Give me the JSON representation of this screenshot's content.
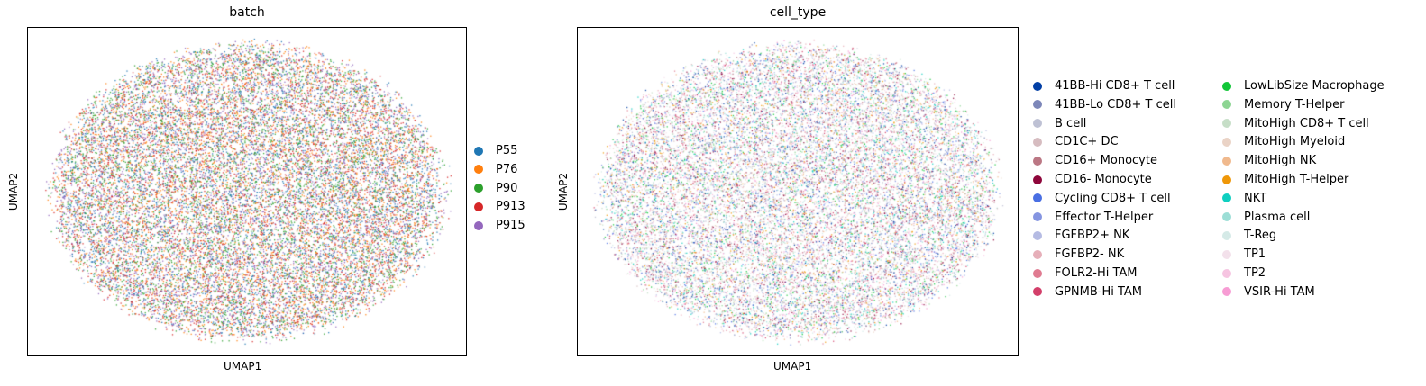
{
  "chart_data": [
    {
      "type": "scatter",
      "title": "batch",
      "xlabel": "UMAP1",
      "ylabel": "UMAP2",
      "grid": false,
      "ticks": false,
      "legend_placement": "right",
      "categories": [
        "P55",
        "P76",
        "P90",
        "P913",
        "P915"
      ],
      "colors": [
        "#1f77b4",
        "#ff7f0e",
        "#2ca02c",
        "#d62728",
        "#9467bd"
      ],
      "point_cloud": {
        "shape": "ellipse",
        "approx_points": 20000
      }
    },
    {
      "type": "scatter",
      "title": "cell_type",
      "xlabel": "UMAP1",
      "ylabel": "UMAP2",
      "grid": false,
      "ticks": false,
      "legend_placement": "right",
      "categories": [
        "41BB-Hi CD8+ T cell",
        "41BB-Lo CD8+ T cell",
        "B cell",
        "CD1C+ DC",
        "CD16+ Monocyte",
        "CD16- Monocyte",
        "Cycling CD8+ T cell",
        "Effector T-Helper",
        "FGFBP2+ NK",
        "FGFBP2- NK",
        "FOLR2-Hi TAM",
        "GPNMB-Hi TAM",
        "LowLibSize Macrophage",
        "Memory T-Helper",
        "MitoHigh CD8+ T cell",
        "MitoHigh Myeloid",
        "MitoHigh NK",
        "MitoHigh T-Helper",
        "NKT",
        "Plasma cell",
        "T-Reg",
        "TP1",
        "TP2",
        "VSIR-Hi TAM"
      ],
      "colors": [
        "#023fa5",
        "#7d87b9",
        "#bec1d4",
        "#d6bcc0",
        "#bb7784",
        "#8e063b",
        "#4a6fe3",
        "#8595e1",
        "#b5bbe3",
        "#e6afb9",
        "#e07b91",
        "#d33f6a",
        "#11c638",
        "#8dd593",
        "#c6dec7",
        "#ead3c6",
        "#f0b98d",
        "#ef9708",
        "#0fcfc0",
        "#9cded6",
        "#d5eae7",
        "#f3e1eb",
        "#f6c4e1",
        "#f79cd4"
      ],
      "point_cloud": {
        "shape": "ellipse",
        "approx_points": 20000
      }
    }
  ]
}
